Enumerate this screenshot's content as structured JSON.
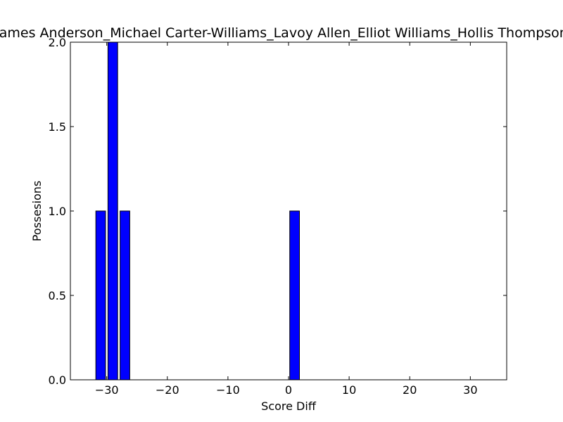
{
  "chart_data": {
    "type": "bar",
    "title": "James Anderson_Michael Carter-Williams_Lavoy Allen_Elliot Williams_Hollis Thompson",
    "xlabel": "Score Diff",
    "ylabel": "Possesions",
    "xlim": [
      -36,
      36
    ],
    "ylim": [
      0,
      2
    ],
    "bar_width": 1.6,
    "bar_color": "#0000ff",
    "bars": [
      {
        "x": -31,
        "y": 1
      },
      {
        "x": -29,
        "y": 2
      },
      {
        "x": -27,
        "y": 1
      },
      {
        "x": 1,
        "y": 1
      }
    ],
    "x_ticks": [
      {
        "value": -30,
        "label": "−30"
      },
      {
        "value": -20,
        "label": "−20"
      },
      {
        "value": -10,
        "label": "−10"
      },
      {
        "value": 0,
        "label": "0"
      },
      {
        "value": 10,
        "label": "10"
      },
      {
        "value": 20,
        "label": "20"
      },
      {
        "value": 30,
        "label": "30"
      }
    ],
    "y_ticks": [
      {
        "value": 0,
        "label": "0.0"
      },
      {
        "value": 0.5,
        "label": "0.5"
      },
      {
        "value": 1,
        "label": "1.0"
      },
      {
        "value": 1.5,
        "label": "1.5"
      },
      {
        "value": 2,
        "label": "2.0"
      }
    ],
    "grid": false,
    "legend": "none"
  }
}
